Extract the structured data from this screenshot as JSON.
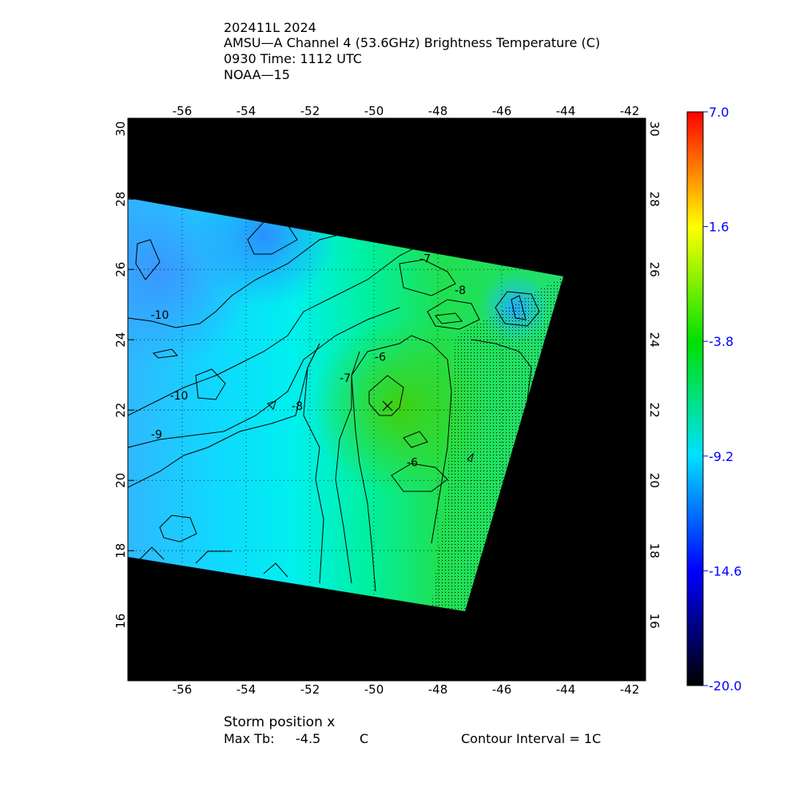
{
  "header": {
    "line1": "202411L 2024",
    "line2": "AMSU—A Channel 4 (53.6GHz) Brightness Temperature (C)",
    "line3": "0930 Time: 1112 UTC",
    "line4": "NOAA—15"
  },
  "footer": {
    "storm_position": "Storm position x",
    "max_tb_label": "Max Tb:",
    "max_tb_value": "-4.5",
    "max_tb_unit": "C",
    "contour_interval": "Contour Interval = 1C"
  },
  "chart_data": {
    "type": "heatmap",
    "title": "AMSU-A Channel 4 (53.6GHz) Brightness Temperature (C)",
    "x_ticks": [
      "-56",
      "-54",
      "-52",
      "-50",
      "-48",
      "-46",
      "-44",
      "-42"
    ],
    "y_ticks": [
      "16",
      "18",
      "20",
      "22",
      "24",
      "26",
      "28",
      "30"
    ],
    "xlim": [
      -57.7,
      -41.5
    ],
    "ylim": [
      14.3,
      30.3
    ],
    "grid": true,
    "colorbar": {
      "ticks": [
        "7.0",
        "1.6",
        "-3.8",
        "-9.2",
        "-14.6",
        "-20.0"
      ],
      "range": [
        -20.0,
        7.0
      ],
      "colors": [
        "#000000",
        "#0000ff",
        "#00e0ff",
        "#00e000",
        "#ffff00",
        "#ff0000"
      ]
    },
    "contour_labels": [
      {
        "text": "-10",
        "lon": -56.7,
        "lat": 24.6
      },
      {
        "text": "-10",
        "lon": -56.1,
        "lat": 22.3
      },
      {
        "text": "-9",
        "lon": -56.8,
        "lat": 21.2
      },
      {
        "text": "-8",
        "lon": -52.4,
        "lat": 22.0
      },
      {
        "text": "-7",
        "lon": -50.9,
        "lat": 22.8
      },
      {
        "text": "-6",
        "lon": -49.8,
        "lat": 23.4
      },
      {
        "text": "-6",
        "lon": -48.8,
        "lat": 20.4
      },
      {
        "text": "-7",
        "lon": -48.4,
        "lat": 26.2
      },
      {
        "text": "-8",
        "lon": -47.3,
        "lat": 25.3
      }
    ],
    "storm_position": {
      "lon": -49.5,
      "lat": 22.3,
      "marker": "x"
    },
    "max_tb": -4.5,
    "contour_interval": 1
  }
}
